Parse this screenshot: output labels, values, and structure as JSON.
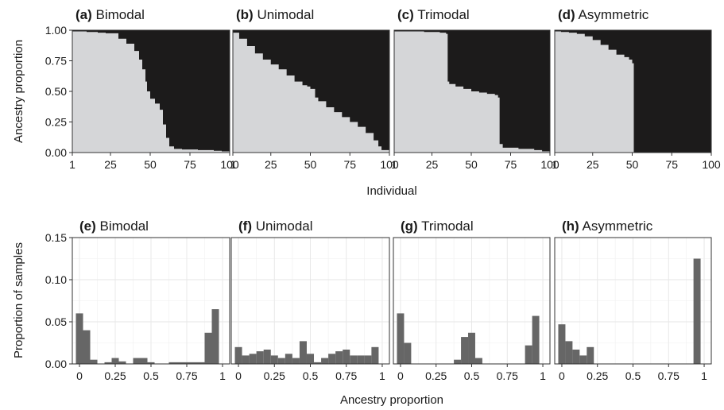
{
  "chart_data": [
    {
      "type": "area",
      "panel_label": "(a)",
      "title": "Bimodal",
      "xlabel": "Individual",
      "ylabel": "Ancestry proportion",
      "x_ticks": [
        "1",
        "25",
        "50",
        "75",
        "100"
      ],
      "y_ticks": [
        "0.00",
        "0.25",
        "0.50",
        "0.75",
        "1.00"
      ],
      "xlim": [
        1,
        100
      ],
      "ylim": [
        0,
        1
      ],
      "colors": {
        "lower": "#d5d6d8",
        "upper": "#1c1b1b"
      },
      "series": [
        {
          "x": [
            1,
            10,
            17,
            22,
            30,
            35,
            40,
            43,
            45,
            47,
            48,
            50,
            53,
            56,
            58,
            60,
            62,
            65,
            70,
            80,
            90,
            95,
            100
          ],
          "values": [
            0.99,
            0.985,
            0.98,
            0.975,
            0.93,
            0.89,
            0.83,
            0.76,
            0.68,
            0.58,
            0.5,
            0.44,
            0.4,
            0.35,
            0.23,
            0.12,
            0.05,
            0.03,
            0.025,
            0.02,
            0.015,
            0.01,
            0.005
          ]
        }
      ]
    },
    {
      "type": "area",
      "panel_label": "(b)",
      "title": "Unimodal",
      "x_ticks": [
        "1",
        "25",
        "50",
        "75",
        "100"
      ],
      "xlim": [
        1,
        100
      ],
      "ylim": [
        0,
        1
      ],
      "colors": {
        "lower": "#d5d6d8",
        "upper": "#1c1b1b"
      },
      "series": [
        {
          "x": [
            1,
            5,
            10,
            15,
            20,
            25,
            30,
            35,
            40,
            45,
            48,
            50,
            53,
            55,
            60,
            65,
            70,
            75,
            80,
            85,
            90,
            93,
            95,
            100
          ],
          "values": [
            0.98,
            0.93,
            0.87,
            0.81,
            0.76,
            0.72,
            0.68,
            0.63,
            0.58,
            0.55,
            0.54,
            0.52,
            0.45,
            0.42,
            0.37,
            0.33,
            0.29,
            0.25,
            0.21,
            0.16,
            0.1,
            0.05,
            0.02,
            0.01
          ]
        }
      ]
    },
    {
      "type": "area",
      "panel_label": "(c)",
      "title": "Trimodal",
      "x_ticks": [
        "1",
        "25",
        "50",
        "75",
        "100"
      ],
      "xlim": [
        1,
        100
      ],
      "ylim": [
        0,
        1
      ],
      "colors": {
        "lower": "#d5d6d8",
        "upper": "#1c1b1b"
      },
      "series": [
        {
          "x": [
            1,
            10,
            20,
            30,
            34,
            35,
            36,
            40,
            45,
            50,
            55,
            60,
            65,
            67,
            68,
            70,
            80,
            90,
            95,
            100
          ],
          "values": [
            0.99,
            0.99,
            0.985,
            0.98,
            0.97,
            0.58,
            0.56,
            0.54,
            0.52,
            0.5,
            0.49,
            0.48,
            0.47,
            0.45,
            0.07,
            0.04,
            0.03,
            0.02,
            0.01,
            0.005
          ]
        }
      ]
    },
    {
      "type": "area",
      "panel_label": "(d)",
      "title": "Asymmetric",
      "x_ticks": [
        "1",
        "25",
        "50",
        "75",
        "100"
      ],
      "xlim": [
        1,
        100
      ],
      "ylim": [
        0,
        1
      ],
      "colors": {
        "lower": "#d5d6d8",
        "upper": "#1c1b1b"
      },
      "series": [
        {
          "x": [
            1,
            5,
            10,
            15,
            20,
            25,
            30,
            35,
            40,
            45,
            48,
            50,
            51,
            100
          ],
          "values": [
            0.99,
            0.985,
            0.98,
            0.97,
            0.95,
            0.92,
            0.88,
            0.84,
            0.8,
            0.78,
            0.76,
            0.73,
            0,
            0
          ]
        }
      ]
    },
    {
      "type": "bar",
      "panel_label": "(e)",
      "title": "Bimodal",
      "xlabel": "Ancestry proportion",
      "ylabel": "Proportion of samples",
      "x_ticks": [
        "0",
        "0.25",
        "0.5",
        "0.75",
        "1"
      ],
      "y_ticks": [
        "0.00",
        "0.05",
        "0.10",
        "0.15"
      ],
      "xlim": [
        -0.05,
        1.05
      ],
      "ylim": [
        0,
        0.15
      ],
      "bin_width": 0.05,
      "bar_color": "#666666",
      "x": [
        0,
        0.05,
        0.1,
        0.15,
        0.2,
        0.25,
        0.3,
        0.35,
        0.4,
        0.45,
        0.5,
        0.55,
        0.6,
        0.65,
        0.7,
        0.75,
        0.8,
        0.85,
        0.9,
        0.95,
        1
      ],
      "values": [
        0.06,
        0.04,
        0.005,
        0,
        0.002,
        0.007,
        0.003,
        0,
        0.007,
        0.007,
        0.002,
        0,
        0,
        0.002,
        0.002,
        0.002,
        0.002,
        0.002,
        0.037,
        0.065,
        0
      ]
    },
    {
      "type": "bar",
      "panel_label": "(f)",
      "title": "Unimodal",
      "x_ticks": [
        "0",
        "0.25",
        "0.5",
        "0.75",
        "1"
      ],
      "xlim": [
        -0.05,
        1.05
      ],
      "ylim": [
        0,
        0.15
      ],
      "bin_width": 0.05,
      "bar_color": "#666666",
      "x": [
        0,
        0.05,
        0.1,
        0.15,
        0.2,
        0.25,
        0.3,
        0.35,
        0.4,
        0.45,
        0.5,
        0.55,
        0.6,
        0.65,
        0.7,
        0.75,
        0.8,
        0.85,
        0.9,
        0.95,
        1
      ],
      "values": [
        0.02,
        0.01,
        0.012,
        0.015,
        0.017,
        0.01,
        0.007,
        0.012,
        0.007,
        0.027,
        0.012,
        0.002,
        0.007,
        0.012,
        0.015,
        0.017,
        0.01,
        0.01,
        0.01,
        0.02,
        0
      ]
    },
    {
      "type": "bar",
      "panel_label": "(g)",
      "title": "Trimodal",
      "x_ticks": [
        "0",
        "0.25",
        "0.5",
        "0.75",
        "1"
      ],
      "xlim": [
        -0.05,
        1.05
      ],
      "ylim": [
        0,
        0.15
      ],
      "bin_width": 0.05,
      "bar_color": "#666666",
      "x": [
        0,
        0.05,
        0.1,
        0.15,
        0.2,
        0.25,
        0.3,
        0.35,
        0.4,
        0.45,
        0.5,
        0.55,
        0.6,
        0.65,
        0.7,
        0.75,
        0.8,
        0.85,
        0.9,
        0.95,
        1
      ],
      "values": [
        0.06,
        0.025,
        0,
        0,
        0,
        0,
        0,
        0,
        0.005,
        0.032,
        0.037,
        0.007,
        0,
        0,
        0,
        0,
        0,
        0,
        0.022,
        0.057,
        0
      ]
    },
    {
      "type": "bar",
      "panel_label": "(h)",
      "title": "Asymmetric",
      "x_ticks": [
        "0",
        "0.25",
        "0.5",
        "0.75",
        "1"
      ],
      "xlim": [
        -0.05,
        1.05
      ],
      "ylim": [
        0,
        0.15
      ],
      "bin_width": 0.05,
      "bar_color": "#666666",
      "x": [
        0,
        0.05,
        0.1,
        0.15,
        0.2,
        0.25,
        0.3,
        0.35,
        0.4,
        0.45,
        0.5,
        0.55,
        0.6,
        0.65,
        0.7,
        0.75,
        0.8,
        0.85,
        0.9,
        0.95,
        1
      ],
      "values": [
        0.047,
        0.027,
        0.017,
        0.01,
        0.02,
        0,
        0,
        0,
        0,
        0,
        0,
        0,
        0,
        0,
        0,
        0,
        0,
        0,
        0,
        0.125,
        0
      ]
    }
  ]
}
